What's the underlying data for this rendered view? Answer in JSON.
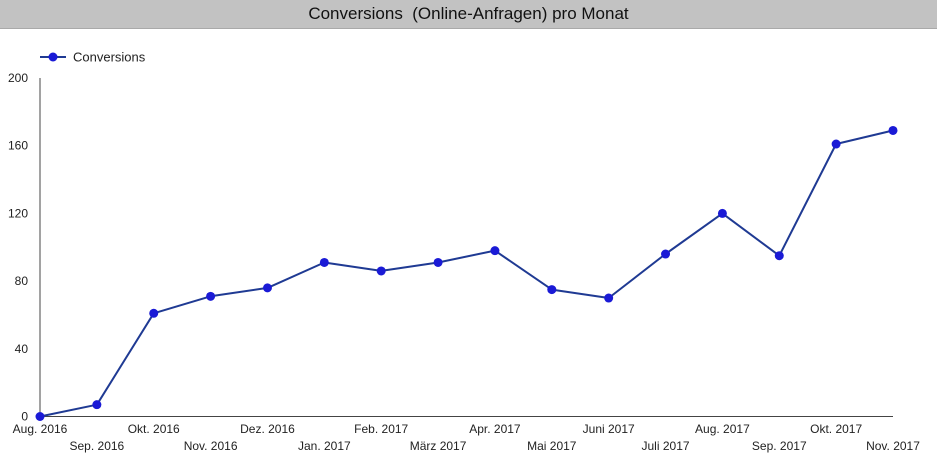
{
  "chart_data": {
    "type": "line",
    "title": "Conversions  (Online-Anfragen) pro Monat",
    "categories": [
      "Aug. 2016",
      "Sep. 2016",
      "Okt. 2016",
      "Nov. 2016",
      "Dez. 2016",
      "Jan. 2017",
      "Feb. 2017",
      "März 2017",
      "Apr. 2017",
      "Mai 2017",
      "Juni 2017",
      "Juli 2017",
      "Aug. 2017",
      "Sep. 2017",
      "Okt. 2017",
      "Nov. 2017"
    ],
    "series": [
      {
        "name": "Conversions",
        "values": [
          0,
          7,
          61,
          71,
          76,
          91,
          86,
          91,
          98,
          75,
          70,
          96,
          120,
          95,
          161,
          169
        ]
      }
    ],
    "yticks": [
      0,
      40,
      80,
      120,
      160,
      200
    ],
    "ylim": [
      0,
      200
    ],
    "xlabel": "",
    "ylabel": "",
    "legend_position": "top-left",
    "grid": false,
    "colors": {
      "line": "#1f3a93",
      "marker": "#1a1ad6",
      "title_bar": "#c2c2c2"
    }
  }
}
